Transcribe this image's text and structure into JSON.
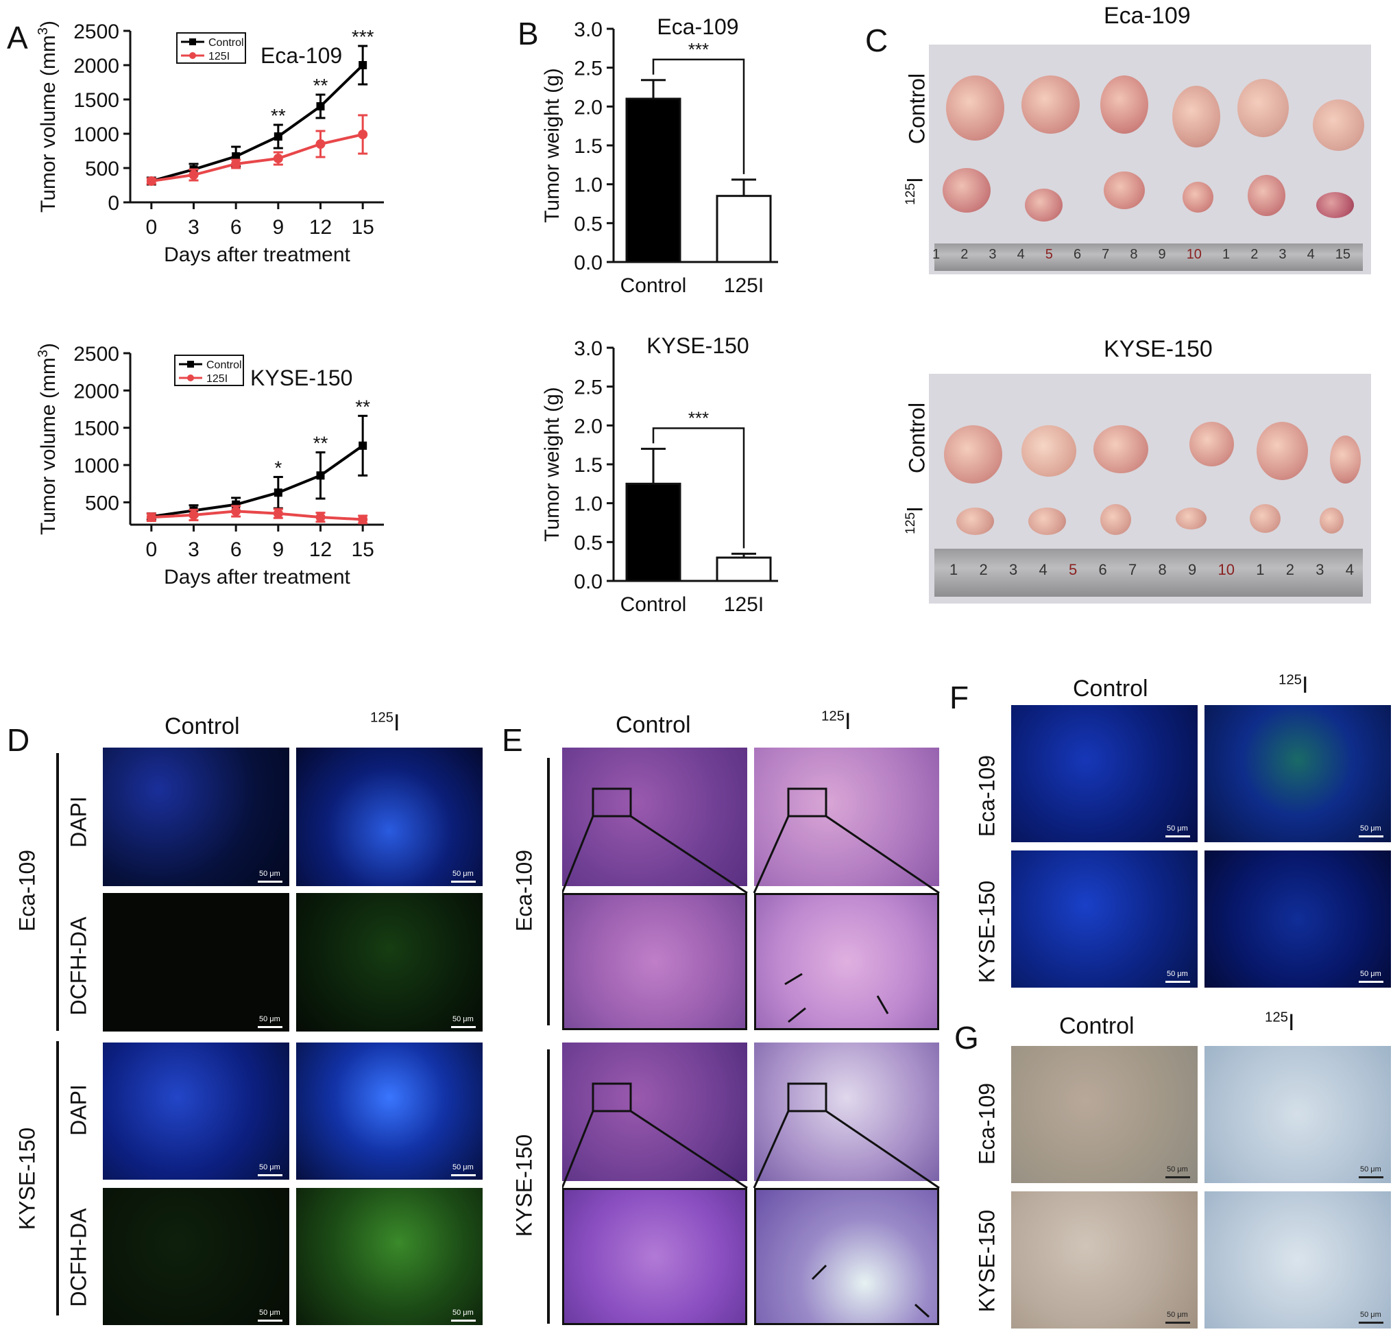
{
  "panels": {
    "A": "A",
    "B": "B",
    "C": "C",
    "D": "D",
    "E": "E",
    "F": "F",
    "G": "G"
  },
  "chart_data": [
    {
      "type": "line",
      "panel": "A",
      "title": "Eca-109",
      "xlabel": "Days after treatment",
      "ylabel": "Tumor volume (mm3)",
      "x": [
        0,
        3,
        6,
        9,
        12,
        15
      ],
      "xlim": [
        -1.5,
        16.5
      ],
      "ylim": [
        0,
        2500
      ],
      "yticks": [
        0,
        500,
        1000,
        1500,
        2000,
        2500
      ],
      "legend": {
        "placement": "top-left",
        "entries": [
          "Control",
          "125I"
        ]
      },
      "series": [
        {
          "name": "Control",
          "color": "#000000",
          "values": [
            310,
            480,
            670,
            960,
            1400,
            2000
          ],
          "err": [
            50,
            80,
            140,
            170,
            170,
            280
          ]
        },
        {
          "name": "125I",
          "color": "#e8474a",
          "values": [
            310,
            400,
            560,
            640,
            850,
            990
          ],
          "err": [
            40,
            80,
            60,
            90,
            190,
            280
          ]
        }
      ],
      "annotations": [
        {
          "x": 9,
          "text": "**"
        },
        {
          "x": 12,
          "text": "**"
        },
        {
          "x": 15,
          "text": "***"
        }
      ]
    },
    {
      "type": "line",
      "panel": "A",
      "title": "KYSE-150",
      "xlabel": "Days after treatment",
      "ylabel": "Tumor volume (mm3)",
      "x": [
        0,
        3,
        6,
        9,
        12,
        15
      ],
      "xlim": [
        -1.5,
        16.5
      ],
      "ylim": [
        200,
        2500
      ],
      "yticks": [
        500,
        1000,
        1500,
        2000,
        2500
      ],
      "legend": {
        "placement": "top-left",
        "entries": [
          "Control",
          "125I"
        ]
      },
      "series": [
        {
          "name": "Control",
          "color": "#000000",
          "values": [
            310,
            390,
            470,
            630,
            860,
            1260
          ],
          "err": [
            40,
            70,
            90,
            210,
            310,
            400
          ]
        },
        {
          "name": "125I",
          "color": "#e8474a",
          "values": [
            300,
            330,
            380,
            350,
            300,
            270
          ],
          "err": [
            50,
            70,
            70,
            60,
            60,
            50
          ]
        }
      ],
      "annotations": [
        {
          "x": 9,
          "text": "*"
        },
        {
          "x": 12,
          "text": "**"
        },
        {
          "x": 15,
          "text": "**"
        }
      ]
    },
    {
      "type": "bar",
      "panel": "B",
      "title": "Eca-109",
      "categories": [
        "Control",
        "125I"
      ],
      "values": [
        2.1,
        0.85
      ],
      "err": [
        0.24,
        0.21
      ],
      "colors": [
        "#000000",
        "#ffffff"
      ],
      "ylabel": "Tumor weight (g)",
      "ylim": [
        0,
        3.0
      ],
      "yticks": [
        "0.0",
        "0.5",
        "1.0",
        "1.5",
        "2.0",
        "2.5",
        "3.0"
      ],
      "significance": "***"
    },
    {
      "type": "bar",
      "panel": "B",
      "title": "KYSE-150",
      "categories": [
        "Control",
        "125I"
      ],
      "values": [
        1.25,
        0.3
      ],
      "err": [
        0.45,
        0.05
      ],
      "colors": [
        "#000000",
        "#ffffff"
      ],
      "ylabel": "Tumor weight (g)",
      "ylim": [
        0,
        3.0
      ],
      "yticks": [
        "0.0",
        "0.5",
        "1.0",
        "1.5",
        "2.0",
        "2.5",
        "3.0"
      ],
      "significance": "***"
    }
  ],
  "panelC": {
    "top_title": "Eca-109",
    "bottom_title": "KYSE-150",
    "row_control": "Control",
    "row_treated_sup": "125",
    "row_treated_base": "I",
    "ruler_top": [
      "1",
      "2",
      "3",
      "4",
      "5",
      "6",
      "7",
      "8",
      "9",
      "10",
      "1",
      "2",
      "3",
      "4",
      "15"
    ],
    "ruler_bottom": [
      "1",
      "2",
      "3",
      "4",
      "5",
      "6",
      "7",
      "8",
      "9",
      "10",
      "1",
      "2",
      "3",
      "4"
    ]
  },
  "panelD": {
    "col_control": "Control",
    "col_treated_sup": "125",
    "col_treated_base": "I",
    "group_top": "Eca-109",
    "group_bottom": "KYSE-150",
    "row_dapi": "DAPI",
    "row_dcfh": "DCFH-DA",
    "scale": "50 μm"
  },
  "panelE": {
    "col_control": "Control",
    "col_treated_sup": "125",
    "col_treated_base": "I",
    "group_top": "Eca-109",
    "group_bottom": "KYSE-150"
  },
  "panelF": {
    "col_control": "Control",
    "col_treated_sup": "125",
    "col_treated_base": "I",
    "row_top": "Eca-109",
    "row_bottom": "KYSE-150",
    "scale": "50 μm"
  },
  "panelG": {
    "col_control": "Control",
    "col_treated_sup": "125",
    "col_treated_base": "I",
    "row_top": "Eca-109",
    "row_bottom": "KYSE-150",
    "scale": "50 μm"
  },
  "colors": {
    "control": "#000000",
    "treated": "#e8474a",
    "dapi": "#1a3bd6",
    "dcfh": "#1f5a1c",
    "he": "#b05aa8",
    "ihc_bg": "#c7d3df"
  }
}
